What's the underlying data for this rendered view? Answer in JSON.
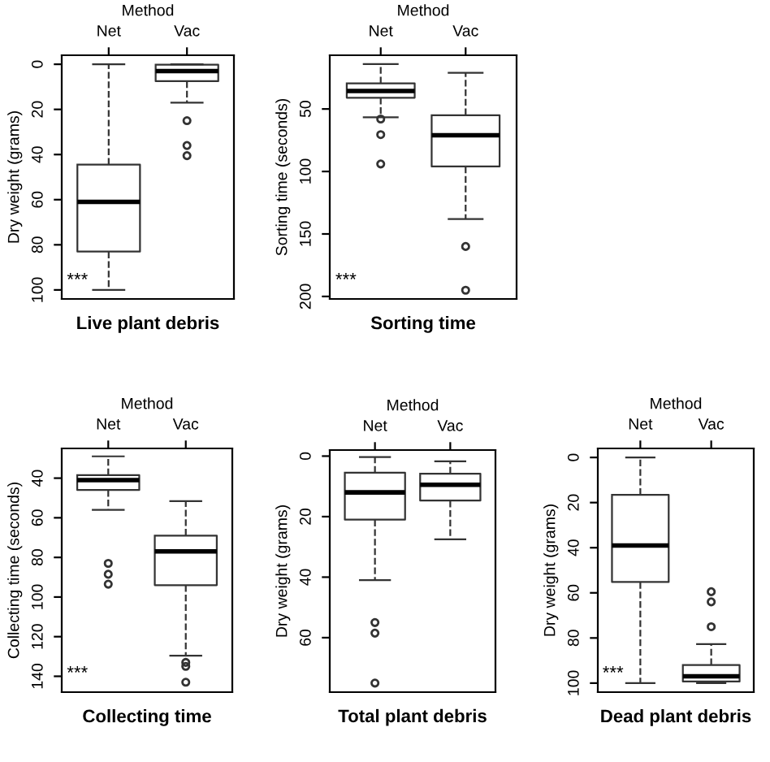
{
  "chart_data": [
    {
      "type": "box",
      "title": "Live plant debris",
      "xlabel": "Method",
      "ylabel": "Dry weight (grams)",
      "categories": [
        "Net",
        "Vac"
      ],
      "ylim": [
        104,
        -4
      ],
      "yticks": [
        0,
        20,
        40,
        60,
        80,
        100
      ],
      "annotations": [
        "***"
      ],
      "boxes": [
        {
          "low": 0,
          "q1": 44.5,
          "median": 61,
          "q3": 83,
          "high": 100
        },
        {
          "low": 0,
          "q1": 0.2,
          "median": 3,
          "q3": 7.5,
          "high": 17,
          "outliers": [
            25,
            36,
            40.5
          ]
        }
      ]
    },
    {
      "type": "box",
      "title": "Sorting time",
      "xlabel": "Method",
      "ylabel": "Sorting time (seconds)",
      "categories": [
        "Net",
        "Vac"
      ],
      "ylim": [
        202,
        7
      ],
      "yticks": [
        50,
        100,
        150,
        200
      ],
      "annotations": [
        "***"
      ],
      "boxes": [
        {
          "low": 14,
          "q1": 29.5,
          "median": 35.6,
          "q3": 41,
          "high": 56.6,
          "outliers": [
            58,
            70.5,
            94
          ]
        },
        {
          "low": 21,
          "q1": 55,
          "median": 71,
          "q3": 96,
          "high": 138,
          "outliers": [
            160,
            195
          ]
        }
      ]
    },
    {
      "type": "box",
      "title": "Collecting time",
      "xlabel": "Method",
      "ylabel": "Collecting time (seconds)",
      "categories": [
        "Net",
        "Vac"
      ],
      "ylim": [
        148,
        25
      ],
      "yticks": [
        40,
        60,
        80,
        100,
        120,
        140
      ],
      "annotations": [
        "***"
      ],
      "boxes": [
        {
          "low": 29,
          "q1": 38.5,
          "median": 41,
          "q3": 46,
          "high": 56,
          "outliers": [
            83,
            88.5,
            93.5
          ]
        },
        {
          "low": 51.6,
          "q1": 69,
          "median": 77,
          "q3": 94,
          "high": 129.6,
          "outliers": [
            133,
            135,
            143
          ]
        }
      ]
    },
    {
      "type": "box",
      "title": "Total plant debris",
      "xlabel": "Method",
      "ylabel": "Dry weight (grams)",
      "categories": [
        "Net",
        "Vac"
      ],
      "ylim": [
        78,
        -2
      ],
      "yticks": [
        0,
        20,
        40,
        60
      ],
      "boxes": [
        {
          "low": 0.3,
          "q1": 5.5,
          "median": 12,
          "q3": 21,
          "high": 41,
          "outliers": [
            55,
            58.5,
            75
          ]
        },
        {
          "low": 1.7,
          "q1": 5.8,
          "median": 9.5,
          "q3": 14.7,
          "high": 27.5
        }
      ]
    },
    {
      "type": "box",
      "title": "Dead plant debris",
      "xlabel": "Method",
      "ylabel": "Dry weight (grams)",
      "categories": [
        "Net",
        "Vac"
      ],
      "ylim": [
        104,
        -4
      ],
      "yticks": [
        0,
        20,
        40,
        60,
        80,
        100
      ],
      "annotations": [
        "***"
      ],
      "boxes": [
        {
          "low": 0,
          "q1": 16.6,
          "median": 39,
          "q3": 55.2,
          "high": 100
        },
        {
          "low": 82.7,
          "q1": 92,
          "median": 97,
          "q3": 99.3,
          "high": 100,
          "outliers": [
            59.5,
            64,
            75
          ]
        }
      ]
    }
  ]
}
